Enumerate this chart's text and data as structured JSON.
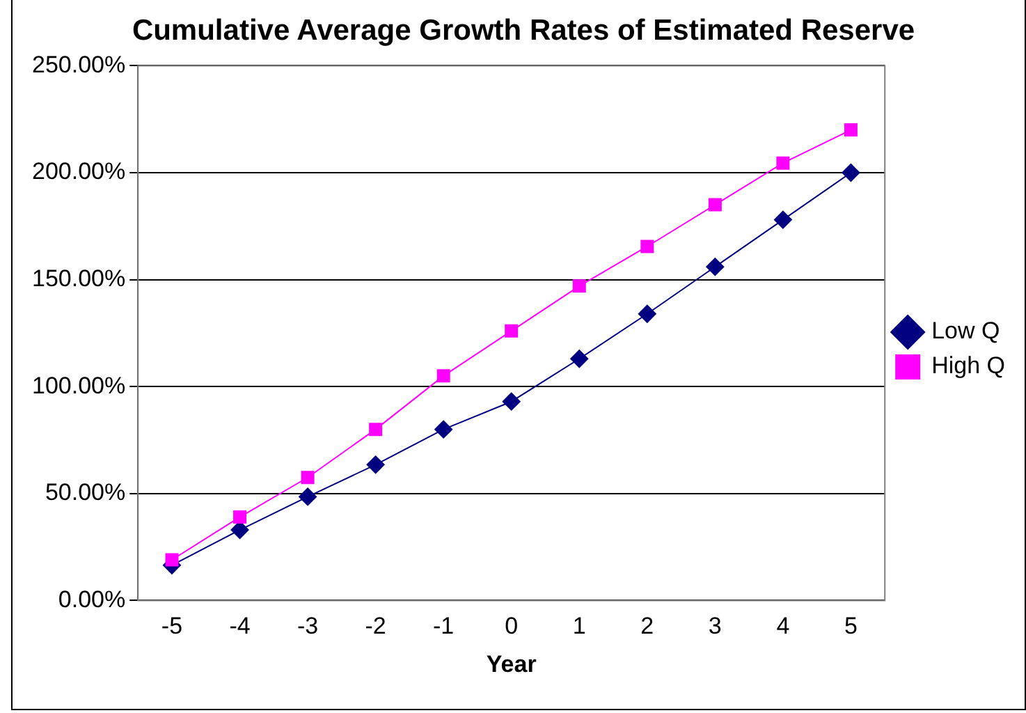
{
  "chart_data": {
    "type": "line",
    "title": "Cumulative Average Growth Rates of Estimated Reserve",
    "xlabel": "Year",
    "categories": [
      "-5",
      "-4",
      "-3",
      "-2",
      "-1",
      "0",
      "1",
      "2",
      "3",
      "4",
      "5"
    ],
    "series": [
      {
        "name": "Low Q",
        "color": "#000080",
        "marker": "diamond",
        "values": [
          16.5,
          33,
          48.5,
          63.5,
          80,
          93,
          113,
          134,
          156,
          178,
          200
        ]
      },
      {
        "name": "High Q",
        "color": "#ff00ff",
        "marker": "square",
        "values": [
          19,
          39,
          57.5,
          80,
          105,
          126,
          147,
          165.5,
          185,
          204.5,
          220
        ]
      }
    ],
    "ylim": [
      0,
      250
    ],
    "yticks": [
      {
        "value": 0,
        "label": "0.00%"
      },
      {
        "value": 50,
        "label": "50.00%"
      },
      {
        "value": 100,
        "label": "100.00%"
      },
      {
        "value": 150,
        "label": "150.00%"
      },
      {
        "value": 200,
        "label": "200.00%"
      },
      {
        "value": 250,
        "label": "250.00%"
      }
    ],
    "grid": "y",
    "legend": "right",
    "line_style": "solid"
  }
}
